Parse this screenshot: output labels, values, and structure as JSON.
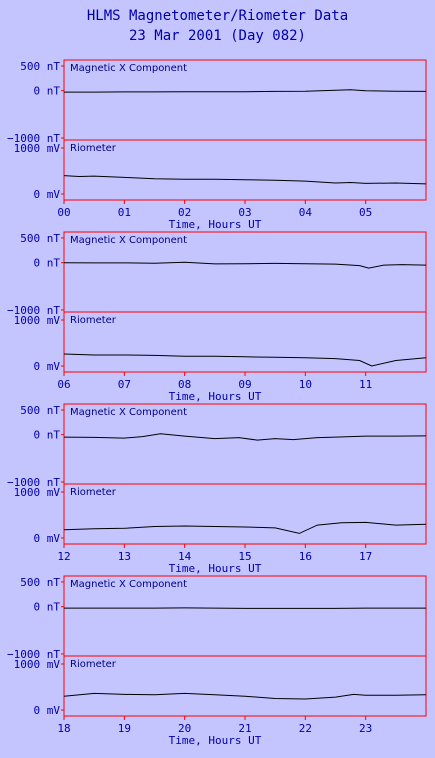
{
  "header": {
    "title": "HLMS Magnetometer/Riometer Data",
    "subtitle": "23 Mar 2001 (Day 082)"
  },
  "colors": {
    "background": "#c4c4ff",
    "frame": "#ff0000",
    "text": "#0000aa",
    "trace": "#000000"
  },
  "chart_data": [
    {
      "type": "line",
      "hours": [
        "00",
        "01",
        "02",
        "03",
        "04",
        "05"
      ],
      "xlabel": "Time, Hours UT",
      "mag": {
        "label": "Magnetic X Component",
        "yticks": [
          "500 nT",
          "0 nT",
          "-1000 nT"
        ],
        "ylim": [
          -1000,
          500
        ],
        "x": [
          0,
          0.5,
          1,
          1.5,
          2,
          2.5,
          3,
          3.5,
          4,
          4.5,
          4.75,
          5,
          5.5,
          6
        ],
        "y": [
          -30,
          -30,
          -25,
          -25,
          -20,
          -20,
          -20,
          -15,
          -10,
          10,
          20,
          0,
          -10,
          -15
        ]
      },
      "rio": {
        "label": "Riometer",
        "yticks": [
          "1000 mV",
          "0 mV"
        ],
        "ylim": [
          0,
          1000
        ],
        "x": [
          0,
          0.25,
          0.5,
          1,
          1.5,
          2,
          2.5,
          3,
          3.5,
          4,
          4.5,
          4.75,
          5,
          5.5,
          6
        ],
        "y": [
          400,
          380,
          390,
          360,
          330,
          320,
          320,
          310,
          300,
          280,
          240,
          250,
          230,
          240,
          220
        ]
      }
    },
    {
      "type": "line",
      "hours": [
        "06",
        "07",
        "08",
        "09",
        "10",
        "11"
      ],
      "xlabel": "Time, Hours UT",
      "mag": {
        "label": "Magnetic X Component",
        "yticks": [
          "500 nT",
          "0 nT",
          "-1000 nT"
        ],
        "ylim": [
          -1000,
          500
        ],
        "x": [
          6,
          6.5,
          7,
          7.5,
          8,
          8.5,
          9,
          9.5,
          10,
          10.5,
          10.9,
          11.05,
          11.3,
          11.6,
          12
        ],
        "y": [
          0,
          -5,
          -5,
          -10,
          10,
          -25,
          -20,
          -15,
          -20,
          -30,
          -60,
          -110,
          -50,
          -40,
          -50
        ]
      },
      "rio": {
        "label": "Riometer",
        "yticks": [
          "1000 mV",
          "0 mV"
        ],
        "ylim": [
          0,
          1000
        ],
        "x": [
          6,
          6.5,
          7,
          7.5,
          8,
          8.5,
          9,
          9.5,
          10,
          10.5,
          10.9,
          11.1,
          11.5,
          12
        ],
        "y": [
          260,
          240,
          240,
          230,
          210,
          210,
          200,
          190,
          180,
          160,
          120,
          0,
          120,
          180
        ]
      }
    },
    {
      "type": "line",
      "hours": [
        "12",
        "13",
        "14",
        "15",
        "16",
        "17"
      ],
      "xlabel": "Time, Hours UT",
      "mag": {
        "label": "Magnetic X Component",
        "yticks": [
          "500 nT",
          "0 nT",
          "-1000 nT"
        ],
        "ylim": [
          -1000,
          500
        ],
        "x": [
          12,
          12.5,
          13,
          13.3,
          13.6,
          14,
          14.5,
          14.9,
          15.2,
          15.5,
          15.8,
          16.2,
          16.5,
          17,
          17.5,
          18
        ],
        "y": [
          -50,
          -55,
          -70,
          -40,
          20,
          -30,
          -80,
          -60,
          -110,
          -80,
          -100,
          -60,
          -50,
          -30,
          -30,
          -25
        ]
      },
      "rio": {
        "label": "Riometer",
        "yticks": [
          "1000 mV",
          "0 mV"
        ],
        "ylim": [
          0,
          1000
        ],
        "x": [
          12,
          12.5,
          13,
          13.5,
          14,
          14.5,
          15,
          15.5,
          15.9,
          16.2,
          16.6,
          17,
          17.5,
          18
        ],
        "y": [
          180,
          200,
          210,
          250,
          260,
          250,
          240,
          220,
          100,
          280,
          330,
          340,
          280,
          300
        ]
      }
    },
    {
      "type": "line",
      "hours": [
        "18",
        "19",
        "20",
        "21",
        "22",
        "23"
      ],
      "xlabel": "Time, Hours UT",
      "mag": {
        "label": "Magnetic X Component",
        "yticks": [
          "500 nT",
          "0 nT",
          "-1000 nT"
        ],
        "ylim": [
          -1000,
          500
        ],
        "x": [
          18,
          18.5,
          19,
          19.5,
          20,
          20.5,
          21,
          21.5,
          22,
          22.5,
          23,
          23.5,
          24
        ],
        "y": [
          -30,
          -30,
          -30,
          -30,
          -25,
          -30,
          -35,
          -35,
          -35,
          -35,
          -30,
          -30,
          -30
        ]
      },
      "rio": {
        "label": "Riometer",
        "yticks": [
          "1000 mV",
          "0 mV"
        ],
        "ylim": [
          0,
          1000
        ],
        "x": [
          18,
          18.5,
          19,
          19.5,
          20,
          20.5,
          21,
          21.5,
          22,
          22.5,
          22.8,
          23,
          23.5,
          24
        ],
        "y": [
          300,
          360,
          340,
          330,
          360,
          330,
          300,
          250,
          240,
          280,
          340,
          320,
          320,
          330
        ]
      }
    }
  ]
}
